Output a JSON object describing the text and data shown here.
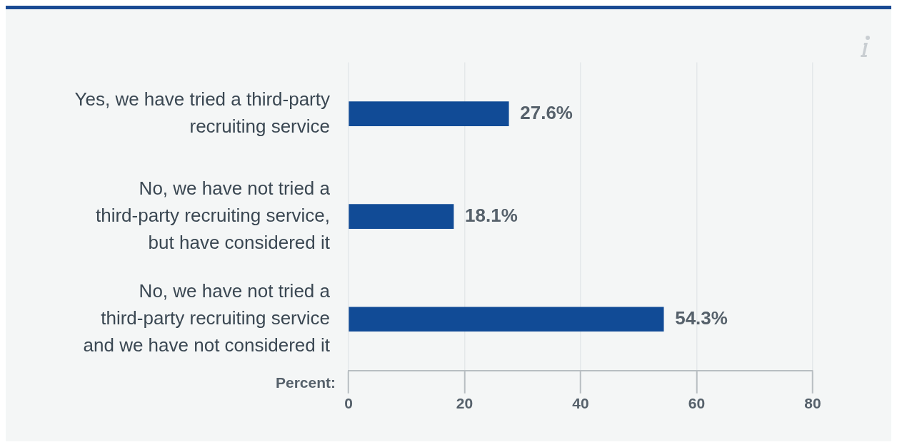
{
  "chart_data": {
    "type": "bar",
    "orientation": "horizontal",
    "categories": [
      "Yes, we have tried a third-party recruiting service",
      "No, we have not tried a third-party recruiting service, but have considered it",
      "No, we have not tried a third-party recruiting service and we have not considered it"
    ],
    "values": [
      27.6,
      18.1,
      54.3
    ],
    "color": "#114b96",
    "xlabel": "Percent:",
    "xlim": [
      0,
      80
    ],
    "xticks": [
      0,
      20,
      40,
      60,
      80
    ],
    "value_labels": [
      "27.6%",
      "18.1%",
      "54.3%"
    ],
    "grid": "x",
    "legend": false
  }
}
